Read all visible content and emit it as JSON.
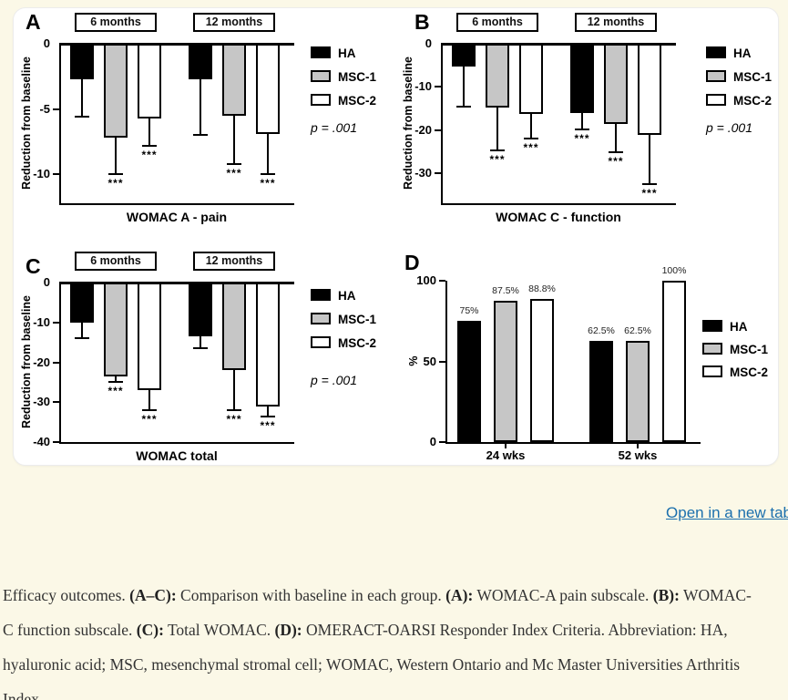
{
  "page": {
    "background": "#fbf8e7",
    "open_link_label": "Open in a new tab",
    "link_color": "#1b6fad"
  },
  "series_legend": [
    {
      "name": "HA",
      "fill": "#000000"
    },
    {
      "name": "MSC-1",
      "fill": "#c6c6c6"
    },
    {
      "name": "MSC-2",
      "fill": "#ffffff"
    }
  ],
  "chart_data": [
    {
      "panel": "A",
      "type": "bar",
      "orientation": "down",
      "title": "WOMAC A - pain",
      "ylabel": "Reduction from baseline",
      "yticks": [
        0,
        -5,
        -10
      ],
      "ylim": [
        0,
        -12.2
      ],
      "p_label": "p = .001",
      "series": [
        "HA",
        "MSC-1",
        "MSC-2"
      ],
      "groups": [
        {
          "label": "6 months",
          "bars": [
            {
              "series": "HA",
              "value": -2.7,
              "err": -5.6,
              "sig": ""
            },
            {
              "series": "MSC-1",
              "value": -7.2,
              "err": -10.0,
              "sig": "***"
            },
            {
              "series": "MSC-2",
              "value": -5.7,
              "err": -7.8,
              "sig": "***"
            }
          ]
        },
        {
          "label": "12 months",
          "bars": [
            {
              "series": "HA",
              "value": -2.7,
              "err": -7.0,
              "sig": ""
            },
            {
              "series": "MSC-1",
              "value": -5.5,
              "err": -9.2,
              "sig": "***"
            },
            {
              "series": "MSC-2",
              "value": -6.9,
              "err": -10.0,
              "sig": "***"
            }
          ]
        }
      ]
    },
    {
      "panel": "B",
      "type": "bar",
      "orientation": "down",
      "title": "WOMAC C - function",
      "ylabel": "Reduction from baseline",
      "yticks": [
        0,
        -10,
        -20,
        -30
      ],
      "ylim": [
        0,
        -37
      ],
      "p_label": "p = .001",
      "series": [
        "HA",
        "MSC-1",
        "MSC-2"
      ],
      "groups": [
        {
          "label": "6 months",
          "bars": [
            {
              "series": "HA",
              "value": -5.3,
              "err": -14.5,
              "sig": ""
            },
            {
              "series": "MSC-1",
              "value": -14.8,
              "err": -24.7,
              "sig": "***"
            },
            {
              "series": "MSC-2",
              "value": -16.2,
              "err": -22.0,
              "sig": "***"
            }
          ]
        },
        {
          "label": "12 months",
          "bars": [
            {
              "series": "HA",
              "value": -16.0,
              "err": -19.8,
              "sig": "***"
            },
            {
              "series": "MSC-1",
              "value": -18.7,
              "err": -25.2,
              "sig": "***"
            },
            {
              "series": "MSC-2",
              "value": -21.2,
              "err": -32.5,
              "sig": "***"
            }
          ]
        }
      ]
    },
    {
      "panel": "C",
      "type": "bar",
      "orientation": "down",
      "title": "WOMAC total",
      "ylabel": "Reduction from baseline",
      "yticks": [
        0,
        -10,
        -20,
        -30,
        -40
      ],
      "ylim": [
        0,
        -40
      ],
      "p_label": "p = .001",
      "series": [
        "HA",
        "MSC-1",
        "MSC-2"
      ],
      "groups": [
        {
          "label": "6 months",
          "bars": [
            {
              "series": "HA",
              "value": -10.0,
              "err": -14.0,
              "sig": ""
            },
            {
              "series": "MSC-1",
              "value": -23.5,
              "err": -25.0,
              "sig": "***"
            },
            {
              "series": "MSC-2",
              "value": -27.0,
              "err": -32.0,
              "sig": "***"
            }
          ]
        },
        {
          "label": "12 months",
          "bars": [
            {
              "series": "HA",
              "value": -13.5,
              "err": -16.5,
              "sig": ""
            },
            {
              "series": "MSC-1",
              "value": -22.0,
              "err": -32.0,
              "sig": "***"
            },
            {
              "series": "MSC-2",
              "value": -31.0,
              "err": -33.5,
              "sig": "***"
            }
          ]
        }
      ]
    },
    {
      "panel": "D",
      "type": "bar",
      "orientation": "up",
      "title": "",
      "ylabel": "%",
      "yticks": [
        0,
        50,
        100
      ],
      "ylim": [
        0,
        100
      ],
      "p_label": "",
      "series": [
        "HA",
        "MSC-1",
        "MSC-2"
      ],
      "groups": [
        {
          "label": "24 wks",
          "bars": [
            {
              "series": "HA",
              "value": 75,
              "label": "75%"
            },
            {
              "series": "MSC-1",
              "value": 87.5,
              "label": "87.5%"
            },
            {
              "series": "MSC-2",
              "value": 88.8,
              "label": "88.8%"
            }
          ]
        },
        {
          "label": "52 wks",
          "bars": [
            {
              "series": "HA",
              "value": 62.5,
              "label": "62.5%"
            },
            {
              "series": "MSC-1",
              "value": 62.5,
              "label": "62.5%"
            },
            {
              "series": "MSC-2",
              "value": 100,
              "label": "100%"
            }
          ]
        }
      ]
    }
  ],
  "caption_segments": [
    {
      "text": "Efficacy outcomes. ",
      "bold": false
    },
    {
      "text": "(A–C):",
      "bold": true
    },
    {
      "text": " Comparison with baseline in each group. ",
      "bold": false
    },
    {
      "text": "(A):",
      "bold": true
    },
    {
      "text": " WOMAC-A pain subscale. ",
      "bold": false
    },
    {
      "text": "(B):",
      "bold": true
    },
    {
      "text": " WOMAC-C function subscale. ",
      "bold": false
    },
    {
      "text": "(C):",
      "bold": true
    },
    {
      "text": " Total WOMAC. ",
      "bold": false
    },
    {
      "text": "(D):",
      "bold": true
    },
    {
      "text": " OMERACT-OARSI Responder Index Criteria. Abbreviation: HA, hyaluronic acid; MSC, mesenchymal stromal cell; WOMAC, Western Ontario and Mc Master Universities Arthritis Index.",
      "bold": false
    }
  ]
}
